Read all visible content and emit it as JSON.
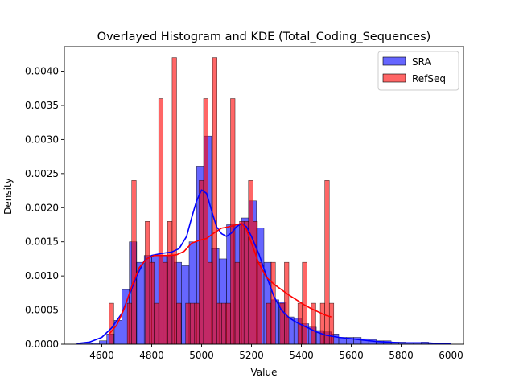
{
  "chart_data": {
    "type": "histogram+kde",
    "title": "Overlayed Histogram and KDE (Total_Coding_Sequences)",
    "xlabel": "Value",
    "ylabel": "Density",
    "xlim": [
      4450,
      6050
    ],
    "ylim": [
      0,
      0.00436
    ],
    "xticks": [
      4600,
      4800,
      5000,
      5200,
      5400,
      5600,
      5800,
      6000
    ],
    "yticks": [
      0.0,
      0.0005,
      0.001,
      0.0015,
      0.002,
      0.0025,
      0.003,
      0.0035,
      0.004
    ],
    "ytick_labels": [
      "0.0000",
      "0.0005",
      "0.0010",
      "0.0015",
      "0.0020",
      "0.0025",
      "0.0030",
      "0.0035",
      "0.0040"
    ],
    "legend_position": "top-right",
    "grid": false,
    "series": [
      {
        "name": "SRA",
        "color": "#0000ff",
        "bar_alpha": 0.6,
        "bin_width": 30,
        "bins": [
          [
            4500,
            2e-05
          ],
          [
            4530,
            2e-05
          ],
          [
            4560,
            2e-05
          ],
          [
            4590,
            5e-05
          ],
          [
            4620,
            0.00015
          ],
          [
            4650,
            0.00035
          ],
          [
            4680,
            0.0008
          ],
          [
            4710,
            0.0015
          ],
          [
            4740,
            0.0012
          ],
          [
            4770,
            0.0013
          ],
          [
            4800,
            0.0013
          ],
          [
            4830,
            0.0013
          ],
          [
            4860,
            0.0013
          ],
          [
            4890,
            0.0012
          ],
          [
            4920,
            0.00115
          ],
          [
            4950,
            0.0015
          ],
          [
            4980,
            0.0026
          ],
          [
            5010,
            0.00305
          ],
          [
            5040,
            0.0014
          ],
          [
            5070,
            0.00125
          ],
          [
            5100,
            0.00175
          ],
          [
            5130,
            0.00175
          ],
          [
            5160,
            0.00185
          ],
          [
            5190,
            0.0021
          ],
          [
            5220,
            0.0017
          ],
          [
            5250,
            0.0012
          ],
          [
            5280,
            0.00065
          ],
          [
            5310,
            0.00062
          ],
          [
            5340,
            0.0004
          ],
          [
            5370,
            0.00038
          ],
          [
            5400,
            0.0003
          ],
          [
            5430,
            0.00025
          ],
          [
            5460,
            0.0002
          ],
          [
            5490,
            0.00018
          ],
          [
            5520,
            0.00015
          ],
          [
            5550,
            0.0001
          ],
          [
            5580,
            0.0001
          ],
          [
            5610,
            0.0001
          ],
          [
            5640,
            8e-05
          ],
          [
            5670,
            7e-05
          ],
          [
            5700,
            5e-05
          ],
          [
            5730,
            5e-05
          ],
          [
            5760,
            3e-05
          ],
          [
            5790,
            3e-05
          ],
          [
            5820,
            2e-05
          ],
          [
            5850,
            2e-05
          ],
          [
            5880,
            3e-05
          ],
          [
            5910,
            2e-05
          ],
          [
            5940,
            1e-05
          ],
          [
            5970,
            1e-05
          ]
        ],
        "kde": [
          [
            4500,
            1e-05
          ],
          [
            4550,
            3e-05
          ],
          [
            4600,
            0.0001
          ],
          [
            4640,
            0.00024
          ],
          [
            4680,
            0.00045
          ],
          [
            4710,
            0.00072
          ],
          [
            4740,
            0.001
          ],
          [
            4770,
            0.00122
          ],
          [
            4800,
            0.0013
          ],
          [
            4840,
            0.00133
          ],
          [
            4880,
            0.00135
          ],
          [
            4910,
            0.0014
          ],
          [
            4940,
            0.00158
          ],
          [
            4960,
            0.00185
          ],
          [
            4980,
            0.0021
          ],
          [
            5000,
            0.00226
          ],
          [
            5020,
            0.00221
          ],
          [
            5040,
            0.00196
          ],
          [
            5060,
            0.00172
          ],
          [
            5080,
            0.00162
          ],
          [
            5100,
            0.00158
          ],
          [
            5120,
            0.00163
          ],
          [
            5140,
            0.00172
          ],
          [
            5160,
            0.00177
          ],
          [
            5180,
            0.00172
          ],
          [
            5200,
            0.00158
          ],
          [
            5230,
            0.00132
          ],
          [
            5260,
            0.001
          ],
          [
            5290,
            0.0007
          ],
          [
            5320,
            0.0005
          ],
          [
            5350,
            0.00039
          ],
          [
            5380,
            0.00032
          ],
          [
            5420,
            0.00025
          ],
          [
            5460,
            0.00018
          ],
          [
            5500,
            0.00013
          ],
          [
            5550,
            0.0001
          ],
          [
            5600,
            8e-05
          ],
          [
            5650,
            6e-05
          ],
          [
            5700,
            4e-05
          ],
          [
            5750,
            3e-05
          ],
          [
            5800,
            2e-05
          ],
          [
            5850,
            2e-05
          ],
          [
            5900,
            2e-05
          ],
          [
            5950,
            1e-05
          ],
          [
            6000,
            1e-05
          ]
        ]
      },
      {
        "name": "RefSeq",
        "color": "#ff0000",
        "bar_alpha": 0.6,
        "bin_width": 18,
        "bins": [
          [
            4630,
            0.0006
          ],
          [
            4648,
            0.0
          ],
          [
            4666,
            0.0
          ],
          [
            4684,
            0.0
          ],
          [
            4702,
            0.0006
          ],
          [
            4720,
            0.0024
          ],
          [
            4738,
            0.0
          ],
          [
            4756,
            0.0
          ],
          [
            4774,
            0.0018
          ],
          [
            4792,
            0.0012
          ],
          [
            4810,
            0.0006
          ],
          [
            4828,
            0.0036
          ],
          [
            4846,
            0.0012
          ],
          [
            4864,
            0.0018
          ],
          [
            4882,
            0.0042
          ],
          [
            4900,
            0.0006
          ],
          [
            4918,
            0.0
          ],
          [
            4936,
            0.0006
          ],
          [
            4954,
            0.0006
          ],
          [
            4972,
            0.0006
          ],
          [
            4990,
            0.0024
          ],
          [
            5008,
            0.0036
          ],
          [
            5026,
            0.0012
          ],
          [
            5044,
            0.0042
          ],
          [
            5062,
            0.0006
          ],
          [
            5080,
            0.0006
          ],
          [
            5098,
            0.0006
          ],
          [
            5116,
            0.0036
          ],
          [
            5134,
            0.0012
          ],
          [
            5152,
            0.0018
          ],
          [
            5170,
            0.0018
          ],
          [
            5188,
            0.0024
          ],
          [
            5206,
            0.0018
          ],
          [
            5224,
            0.0012
          ],
          [
            5242,
            0.0
          ],
          [
            5260,
            0.0006
          ],
          [
            5278,
            0.0012
          ],
          [
            5296,
            0.0
          ],
          [
            5314,
            0.0006
          ],
          [
            5332,
            0.0012
          ],
          [
            5350,
            0.0
          ],
          [
            5368,
            0.0
          ],
          [
            5386,
            0.0006
          ],
          [
            5404,
            0.0012
          ],
          [
            5422,
            0.0
          ],
          [
            5440,
            0.0006
          ],
          [
            5458,
            0.0
          ],
          [
            5476,
            0.0006
          ],
          [
            5494,
            0.0024
          ],
          [
            5512,
            0.0006
          ]
        ],
        "kde": [
          [
            4630,
            0.00015
          ],
          [
            4660,
            0.00028
          ],
          [
            4690,
            0.00052
          ],
          [
            4720,
            0.00085
          ],
          [
            4750,
            0.00112
          ],
          [
            4780,
            0.00125
          ],
          [
            4810,
            0.0013
          ],
          [
            4840,
            0.0013
          ],
          [
            4870,
            0.0013
          ],
          [
            4900,
            0.00131
          ],
          [
            4930,
            0.00136
          ],
          [
            4960,
            0.00148
          ],
          [
            4990,
            0.00152
          ],
          [
            5020,
            0.00155
          ],
          [
            5050,
            0.00163
          ],
          [
            5080,
            0.0017
          ],
          [
            5110,
            0.00172
          ],
          [
            5140,
            0.00175
          ],
          [
            5160,
            0.00177
          ],
          [
            5180,
            0.00168
          ],
          [
            5200,
            0.00148
          ],
          [
            5230,
            0.00118
          ],
          [
            5260,
            0.00098
          ],
          [
            5290,
            0.00088
          ],
          [
            5320,
            0.0008
          ],
          [
            5350,
            0.00072
          ],
          [
            5380,
            0.00065
          ],
          [
            5410,
            0.00058
          ],
          [
            5440,
            0.00052
          ],
          [
            5470,
            0.00047
          ],
          [
            5500,
            0.00042
          ],
          [
            5520,
            0.0004
          ]
        ]
      }
    ]
  }
}
